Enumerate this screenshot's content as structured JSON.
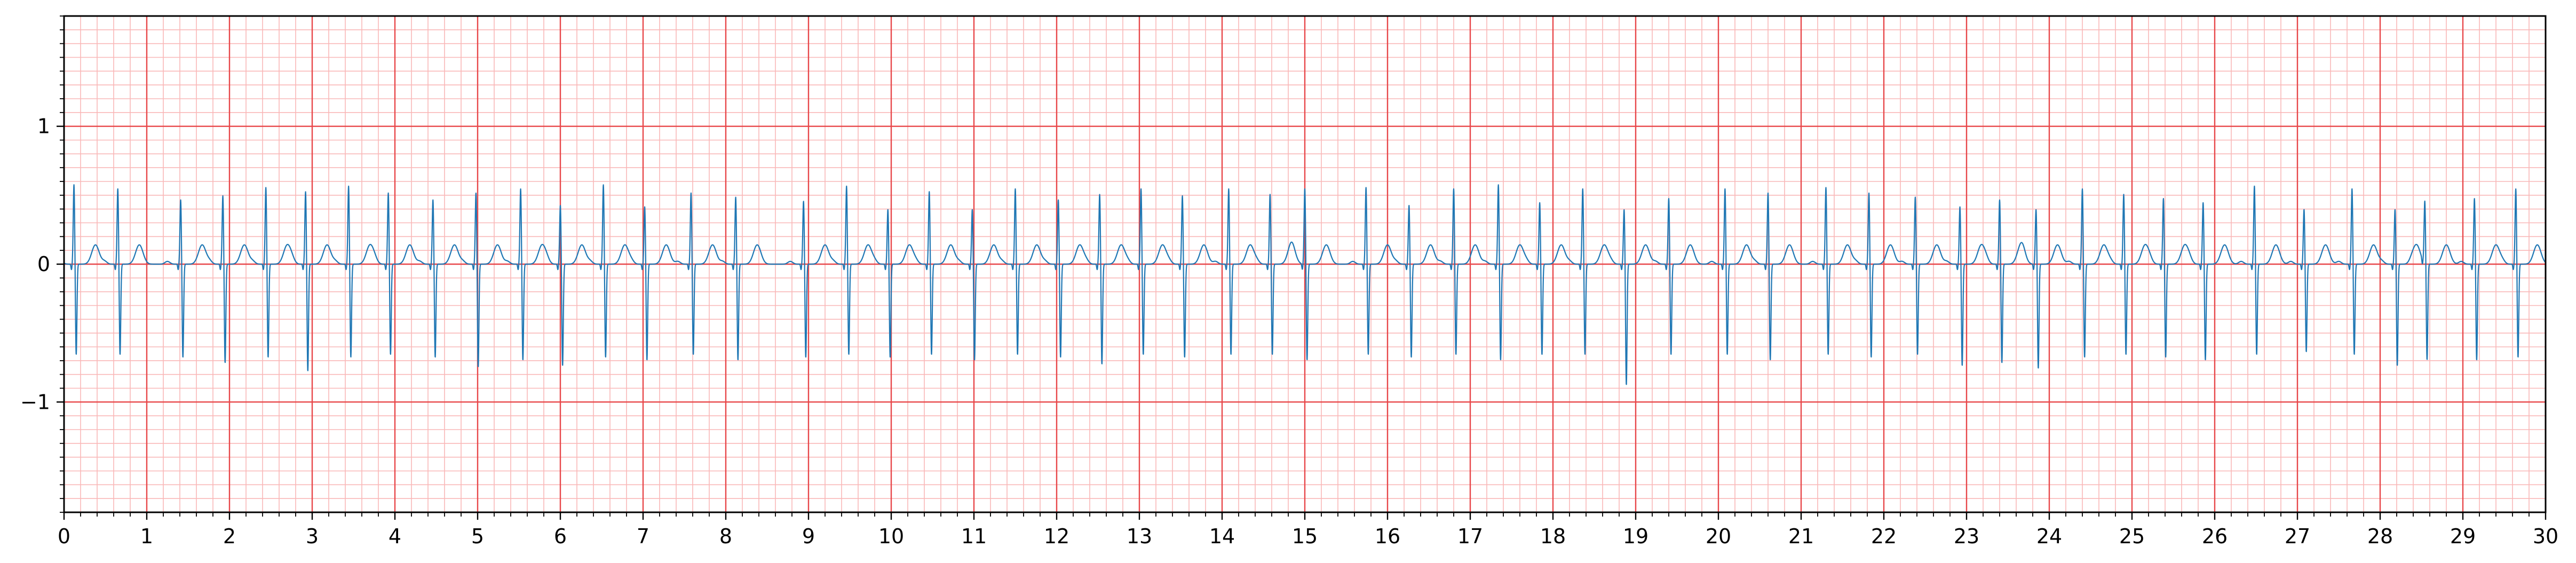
{
  "chart_data": {
    "type": "line",
    "title": "",
    "xlabel": "",
    "ylabel": "",
    "xlim": [
      0,
      30
    ],
    "ylim": [
      -1.8,
      1.8
    ],
    "x_major_ticks": [
      0,
      1,
      2,
      3,
      4,
      5,
      6,
      7,
      8,
      9,
      10,
      11,
      12,
      13,
      14,
      15,
      16,
      17,
      18,
      19,
      20,
      21,
      22,
      23,
      24,
      25,
      26,
      27,
      28,
      29,
      30
    ],
    "x_tick_labels": [
      "0",
      "1",
      "2",
      "3",
      "4",
      "5",
      "6",
      "7",
      "8",
      "9",
      "10",
      "11",
      "12",
      "13",
      "14",
      "15",
      "16",
      "17",
      "18",
      "19",
      "20",
      "21",
      "22",
      "23",
      "24",
      "25",
      "26",
      "27",
      "28",
      "29",
      "30"
    ],
    "x_minor_step": 0.2,
    "y_major_ticks": [
      -1,
      0,
      1
    ],
    "y_tick_labels": [
      "−1",
      "0",
      "1"
    ],
    "y_minor_step": 0.1,
    "grid": true,
    "grid_style": "ecg paper",
    "colors": {
      "trace": "#1f77b4",
      "major_grid": "#e8474a",
      "minor_grid": "#f9b8b8"
    },
    "series": [
      {
        "beats": [
          {
            "t": 0.12,
            "r": 0.58,
            "s": -0.66
          },
          {
            "t": 0.65,
            "r": 0.55,
            "s": -0.66
          },
          {
            "t": 1.41,
            "r": 0.47,
            "s": -0.68
          },
          {
            "t": 1.92,
            "r": 0.5,
            "s": -0.72
          },
          {
            "t": 2.44,
            "r": 0.56,
            "s": -0.68
          },
          {
            "t": 2.92,
            "r": 0.53,
            "s": -0.78
          },
          {
            "t": 3.44,
            "r": 0.57,
            "s": -0.68
          },
          {
            "t": 3.92,
            "r": 0.52,
            "s": -0.66
          },
          {
            "t": 4.46,
            "r": 0.47,
            "s": -0.68
          },
          {
            "t": 4.98,
            "r": 0.52,
            "s": -0.75
          },
          {
            "t": 5.52,
            "r": 0.55,
            "s": -0.7
          },
          {
            "t": 6.0,
            "r": 0.43,
            "s": -0.74
          },
          {
            "t": 6.52,
            "r": 0.58,
            "s": -0.68
          },
          {
            "t": 7.02,
            "r": 0.42,
            "s": -0.7
          },
          {
            "t": 7.58,
            "r": 0.52,
            "s": -0.66
          },
          {
            "t": 8.12,
            "r": 0.49,
            "s": -0.7
          },
          {
            "t": 8.94,
            "r": 0.46,
            "s": -0.68
          },
          {
            "t": 9.46,
            "r": 0.57,
            "s": -0.66
          },
          {
            "t": 9.96,
            "r": 0.4,
            "s": -0.68
          },
          {
            "t": 10.46,
            "r": 0.53,
            "s": -0.66
          },
          {
            "t": 10.98,
            "r": 0.4,
            "s": -0.7
          },
          {
            "t": 11.5,
            "r": 0.55,
            "s": -0.66
          },
          {
            "t": 12.02,
            "r": 0.47,
            "s": -0.68
          },
          {
            "t": 12.52,
            "r": 0.51,
            "s": -0.73
          },
          {
            "t": 13.02,
            "r": 0.55,
            "s": -0.66
          },
          {
            "t": 13.52,
            "r": 0.5,
            "s": -0.68
          },
          {
            "t": 14.08,
            "r": 0.55,
            "s": -0.66
          },
          {
            "t": 14.58,
            "r": 0.51,
            "s": -0.66
          },
          {
            "t": 15.0,
            "r": 0.55,
            "s": -0.7
          },
          {
            "t": 15.74,
            "r": 0.56,
            "s": -0.66
          },
          {
            "t": 16.26,
            "r": 0.43,
            "s": -0.68
          },
          {
            "t": 16.8,
            "r": 0.55,
            "s": -0.66
          },
          {
            "t": 17.34,
            "r": 0.58,
            "s": -0.7
          },
          {
            "t": 17.84,
            "r": 0.45,
            "s": -0.66
          },
          {
            "t": 18.36,
            "r": 0.55,
            "s": -0.66
          },
          {
            "t": 18.86,
            "r": 0.4,
            "s": -0.88
          },
          {
            "t": 19.4,
            "r": 0.48,
            "s": -0.66
          },
          {
            "t": 20.08,
            "r": 0.55,
            "s": -0.66
          },
          {
            "t": 20.6,
            "r": 0.52,
            "s": -0.7
          },
          {
            "t": 21.3,
            "r": 0.56,
            "s": -0.66
          },
          {
            "t": 21.82,
            "r": 0.52,
            "s": -0.68
          },
          {
            "t": 22.38,
            "r": 0.49,
            "s": -0.66
          },
          {
            "t": 22.92,
            "r": 0.42,
            "s": -0.74
          },
          {
            "t": 23.4,
            "r": 0.47,
            "s": -0.72
          },
          {
            "t": 23.84,
            "r": 0.4,
            "s": -0.76
          },
          {
            "t": 24.4,
            "r": 0.55,
            "s": -0.68
          },
          {
            "t": 24.9,
            "r": 0.51,
            "s": -0.66
          },
          {
            "t": 25.38,
            "r": 0.48,
            "s": -0.68
          },
          {
            "t": 25.86,
            "r": 0.45,
            "s": -0.7
          },
          {
            "t": 26.48,
            "r": 0.57,
            "s": -0.66
          },
          {
            "t": 27.08,
            "r": 0.4,
            "s": -0.64
          },
          {
            "t": 27.66,
            "r": 0.55,
            "s": -0.66
          },
          {
            "t": 28.18,
            "r": 0.4,
            "s": -0.74
          },
          {
            "t": 28.54,
            "r": 0.45,
            "s": -0.7
          },
          {
            "t": 29.14,
            "r": 0.48,
            "s": -0.7
          },
          {
            "t": 29.64,
            "r": 0.55,
            "s": -0.68
          }
        ],
        "p_amp": 0.02,
        "t_amp": 0.14
      }
    ]
  }
}
